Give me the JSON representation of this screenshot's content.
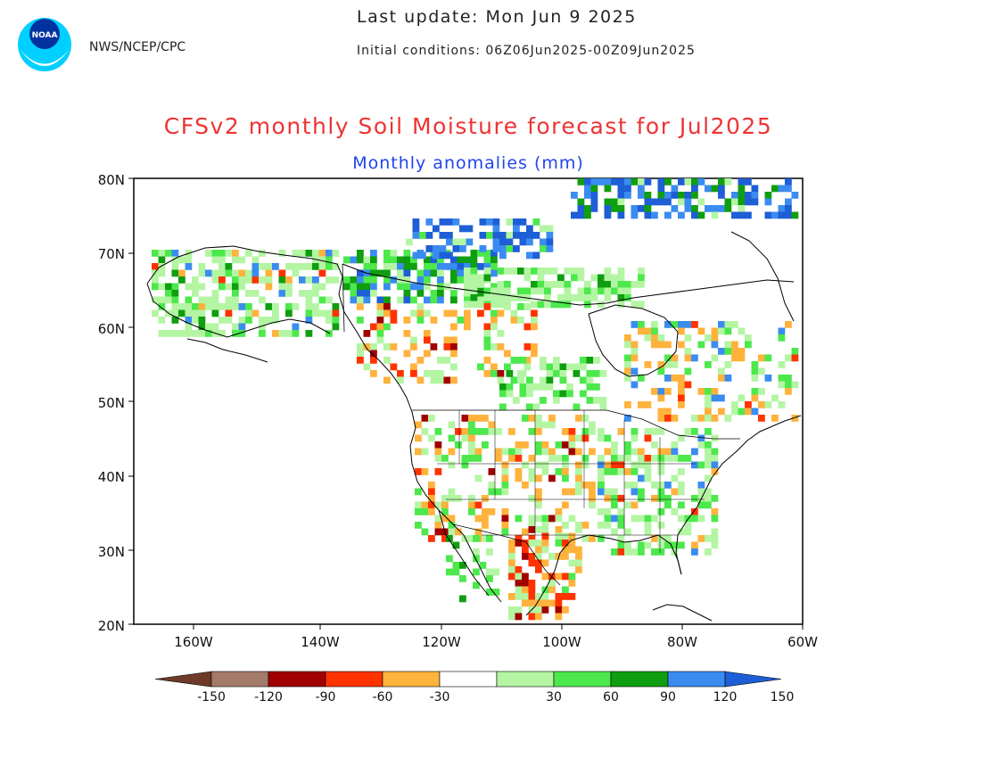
{
  "header": {
    "agency": "NWS/NCEP/CPC",
    "last_update": "Last update: Mon Jun  9 2025",
    "initial_conditions": "Initial conditions: 06Z06Jun2025-00Z09Jun2025"
  },
  "logo": {
    "text": "NOAA"
  },
  "map": {
    "title": "CFSv2 monthly Soil Moisture forecast for Jul2025",
    "subtitle": "Monthly anomalies (mm)",
    "title_color": "#ee3333",
    "subtitle_color": "#2244ee",
    "lat_labels": [
      "80N",
      "70N",
      "60N",
      "50N",
      "40N",
      "30N",
      "20N"
    ],
    "lon_labels": [
      "160W",
      "140W",
      "120W",
      "100W",
      "80W",
      "60W"
    ]
  },
  "legend": {
    "labels": [
      "-150",
      "-120",
      "-90",
      "-60",
      "-30",
      "30",
      "60",
      "90",
      "120",
      "150"
    ],
    "colors": [
      "#6e3b2a",
      "#a47a68",
      "#a00000",
      "#ff3300",
      "#ffb23c",
      "#ffffff",
      "#b4f5a4",
      "#4ce84c",
      "#0f9e0f",
      "#3a8cf0",
      "#1e5ed6"
    ]
  }
}
